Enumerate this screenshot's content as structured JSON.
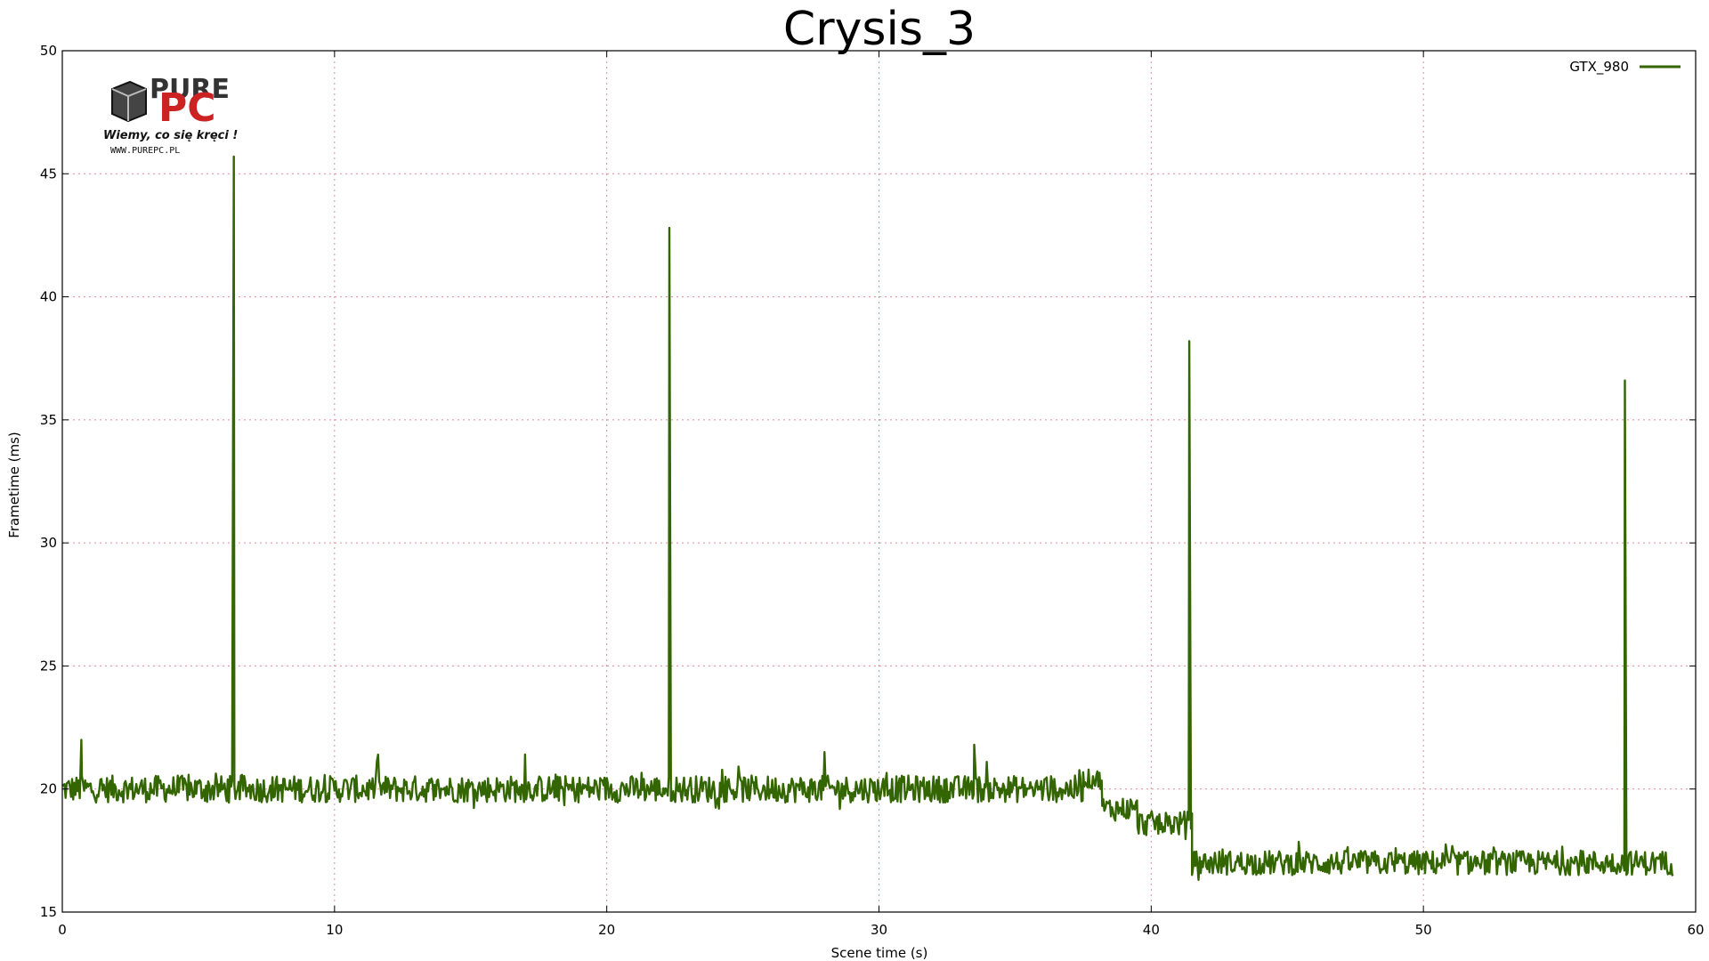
{
  "watermark": {
    "brand_top": "PURE",
    "brand_bottom": "PC",
    "slogan": "Wiemy, co się kręci !",
    "url": "WWW.PUREPC.PL"
  },
  "colors": {
    "series": "#336600",
    "grid": "#e08a9a",
    "logo_dark": "#333333",
    "logo_red": "#cc2222"
  },
  "chart_data": {
    "type": "line",
    "title": "Crysis_3",
    "xlabel": "Scene time (s)",
    "ylabel": "Frametime (ms)",
    "xlim": [
      0,
      60
    ],
    "ylim": [
      15,
      50
    ],
    "xticks": [
      0,
      10,
      20,
      30,
      40,
      50,
      60
    ],
    "yticks": [
      15,
      20,
      25,
      30,
      35,
      40,
      45,
      50
    ],
    "grid": true,
    "legend_position": "top-right",
    "series": [
      {
        "name": "GTX_980",
        "segments": [
          {
            "x_start": 0,
            "x_end": 37.5,
            "mean": 20.0,
            "noise": 0.55
          },
          {
            "x_start": 37.5,
            "x_end": 38.2,
            "mean": 20.4,
            "noise": 0.4
          },
          {
            "x_start": 38.2,
            "x_end": 39.5,
            "mean": 19.2,
            "noise": 0.5
          },
          {
            "x_start": 39.5,
            "x_end": 41.5,
            "mean": 18.6,
            "noise": 0.5
          },
          {
            "x_start": 41.5,
            "x_end": 59.2,
            "mean": 17.0,
            "noise": 0.5
          }
        ],
        "spikes": [
          {
            "x": 0.7,
            "y": 22.0
          },
          {
            "x": 6.3,
            "y": 45.7
          },
          {
            "x": 11.6,
            "y": 21.4
          },
          {
            "x": 17.0,
            "y": 21.4
          },
          {
            "x": 22.3,
            "y": 42.8
          },
          {
            "x": 28.0,
            "y": 21.5
          },
          {
            "x": 33.5,
            "y": 21.8
          },
          {
            "x": 41.4,
            "y": 38.2
          },
          {
            "x": 57.4,
            "y": 36.6
          }
        ]
      }
    ]
  }
}
